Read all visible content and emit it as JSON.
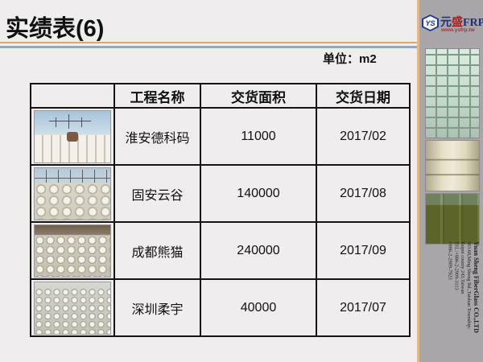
{
  "slide": {
    "title": "实绩表(6)",
    "unit_label": "单位：m2"
  },
  "table": {
    "headers": {
      "photo": "",
      "project": "工程名称",
      "area": "交货面积",
      "date": "交货日期"
    },
    "rows": [
      {
        "photo": "construction site with crane and white FRP formwork",
        "project": "淮安德科码",
        "area": "11000",
        "date": "2017/02"
      },
      {
        "photo": "field of round white FRP pipes with tower cranes",
        "project": "固安云谷",
        "area": "140000",
        "date": "2017/08"
      },
      {
        "photo": "rows of white cylindrical FRP molds",
        "project": "成都熊猫",
        "area": "240000",
        "date": "2017/09"
      },
      {
        "photo": "indoor array of white cylindrical FRP molds",
        "project": "深圳柔宇",
        "area": "40000",
        "date": "2017/07"
      }
    ]
  },
  "sidebar": {
    "logo": {
      "badge": "YS",
      "brand_yuan": "元",
      "brand_sheng": "盛",
      "brand_frp": "FRP",
      "website": "www.ysfrp.tw"
    },
    "contact_lines": [
      "Yuan Sheng FiberGlass CO.,LTD",
      "NO.68,Ming Sheng Rd.,Taishan Township;",
      "Taipei county 243,Taiwan",
      "TEL:+886-2-2909-3113",
      "+886-2-2909-7923"
    ]
  },
  "colors": {
    "slide_background": "#f0edee",
    "title_text": "#111111",
    "rule_orange": "#dfa85f",
    "rule_blue": "#8aa6d6",
    "table_border": "#141414",
    "sidebar_background": "#a9a6a9",
    "sidebar_border": "#e2b78b",
    "brand_navy": "#1d2f7c",
    "brand_red": "#a32020",
    "website_red": "#b03030"
  }
}
